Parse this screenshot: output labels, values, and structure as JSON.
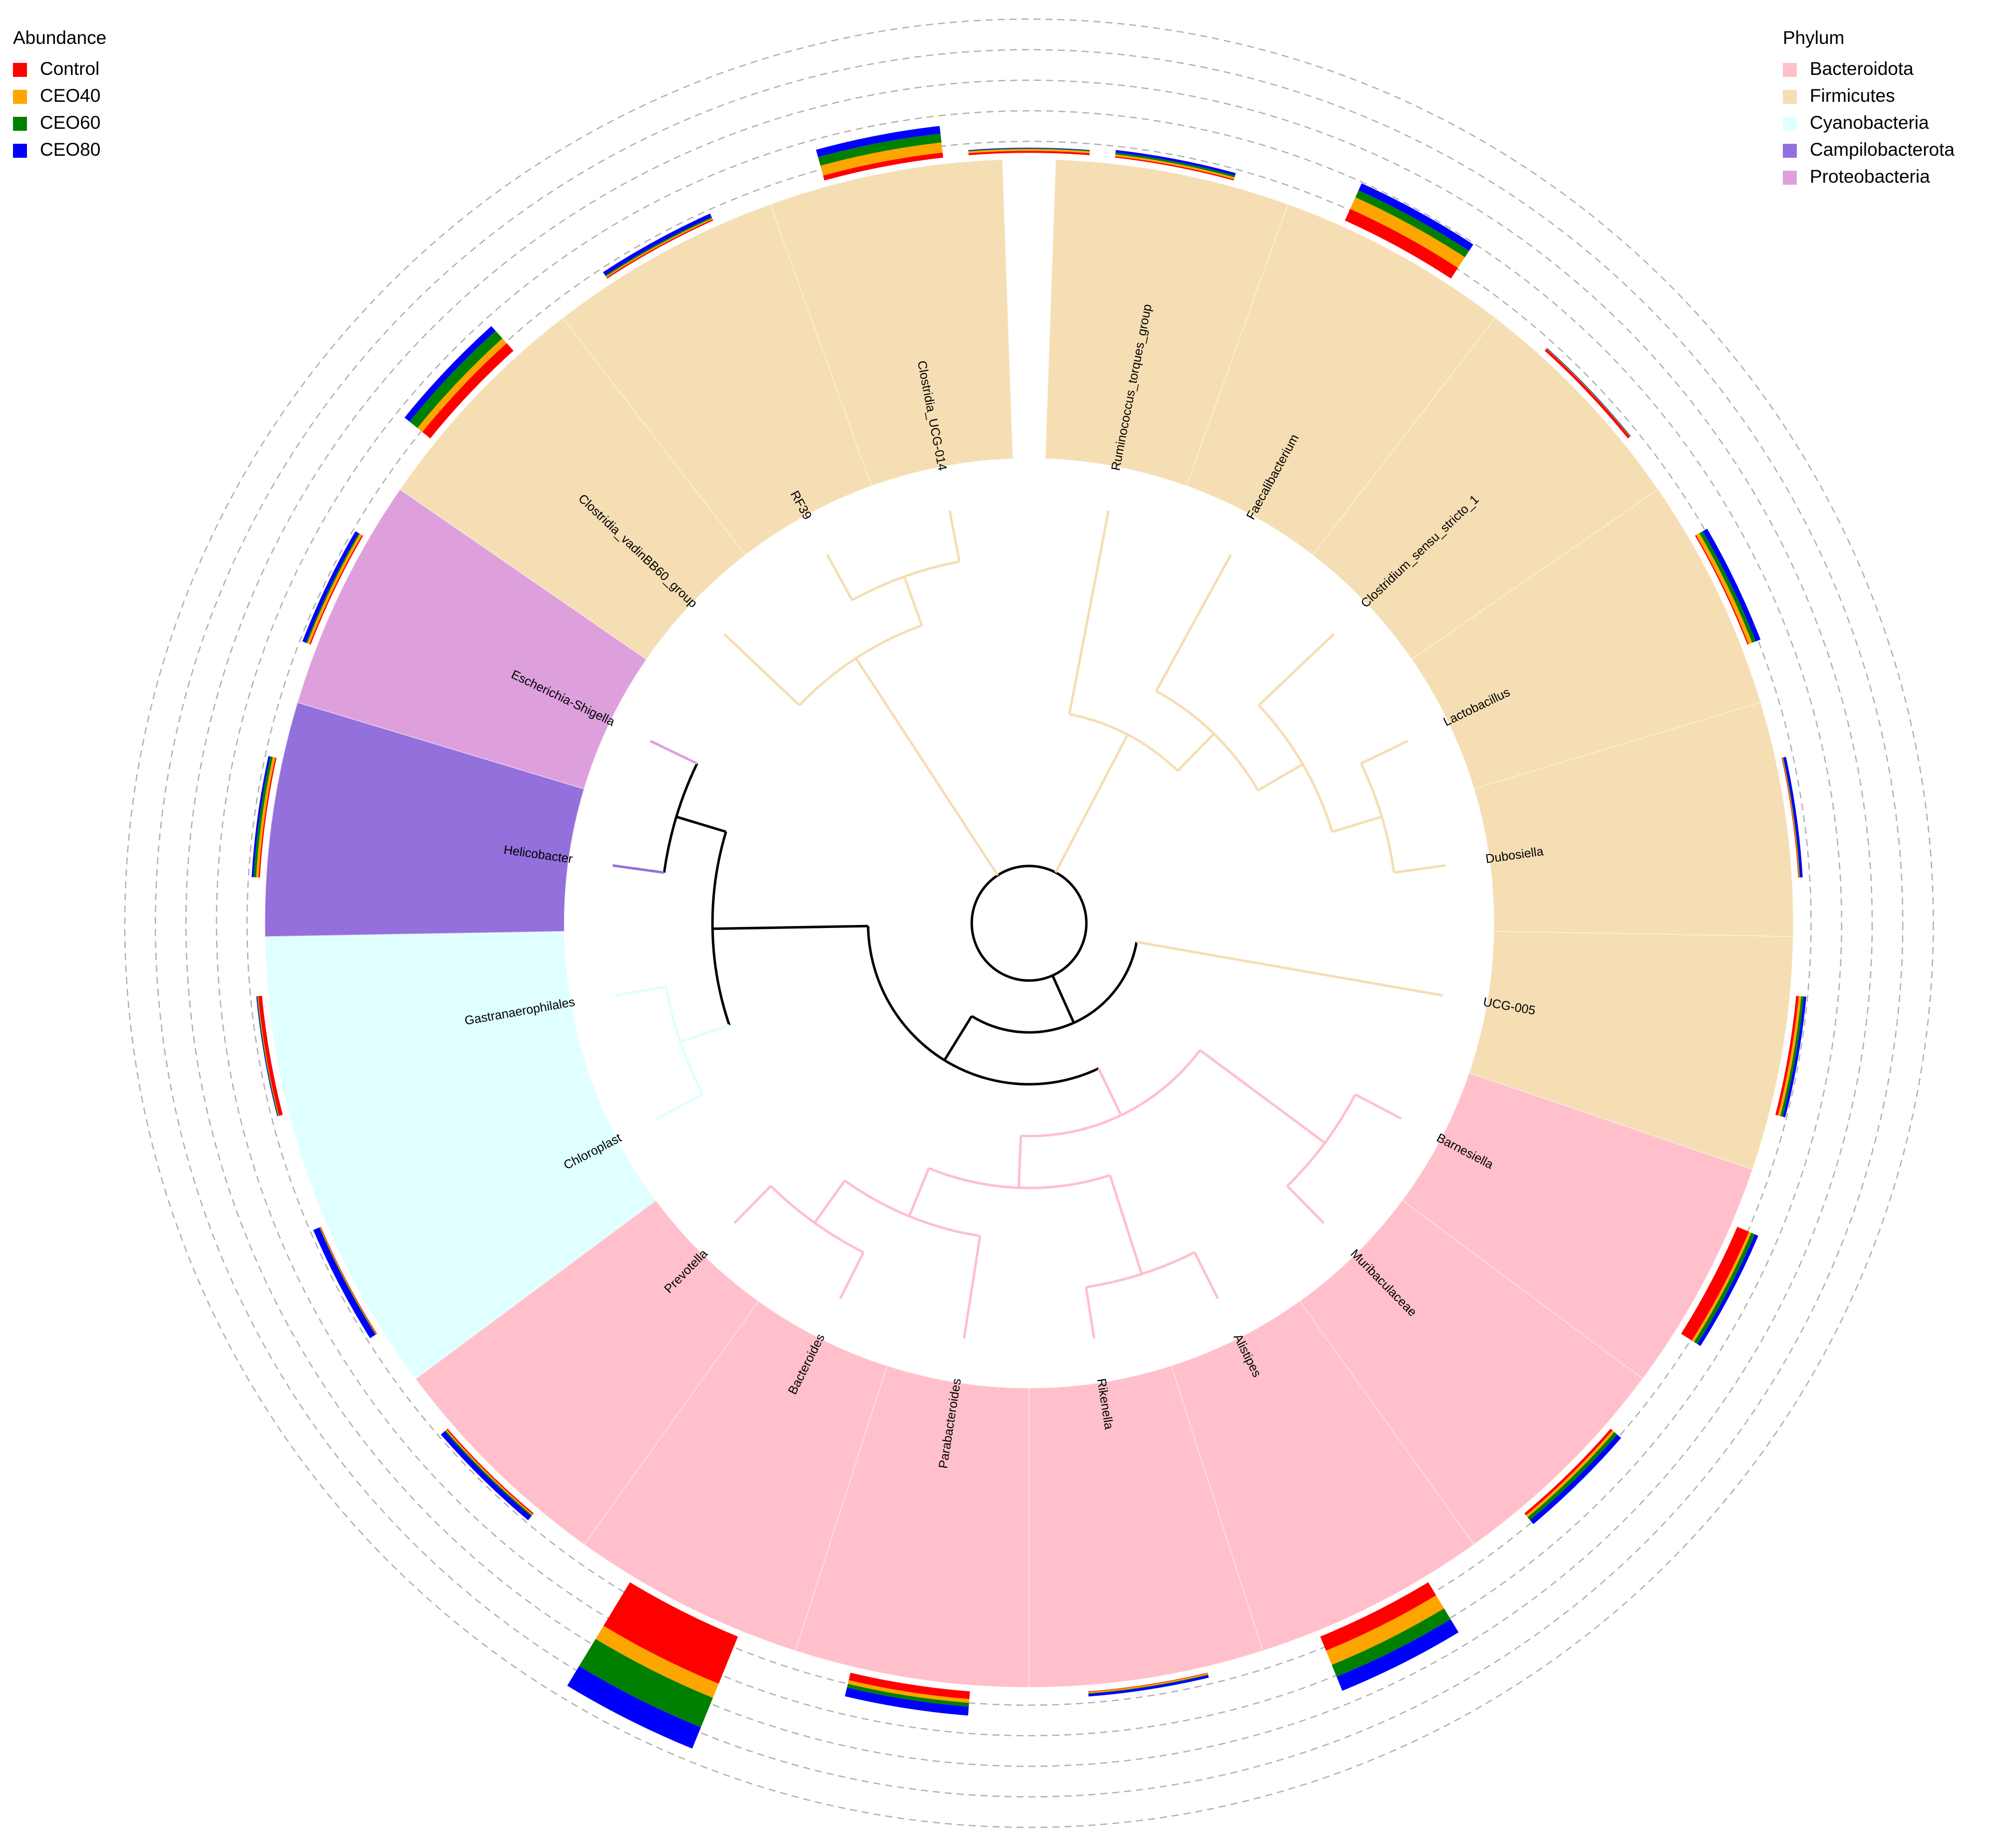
{
  "chart_data": {
    "type": "circular_tree",
    "abundance_legend_title": "Abundance",
    "phylum_legend_title": "Phylum",
    "categories": [
      null,
      "Ruminococcus_torques_group",
      "Faecalibacterium",
      "Clostridium_sensu_stricto_1",
      "Lactobacillus",
      "Dubosiella",
      "UCG-005",
      "Barnesiella",
      "Muribaculaceae",
      "Alistipes",
      "Rikenella",
      "Parabacteroides",
      "Bacteroides",
      "Prevotella",
      "Chloroplast",
      "Gastranaerophilales",
      "Helicobacter",
      "Escherichia-Shigella",
      "Clostridia_vadinBB60_group",
      "RF39",
      "Clostridia_UCG-014"
    ],
    "phylum": [
      null,
      "Firmicutes",
      "Firmicutes",
      "Firmicutes",
      "Firmicutes",
      "Firmicutes",
      "Firmicutes",
      "Bacteroidota",
      "Bacteroidota",
      "Bacteroidota",
      "Bacteroidota",
      "Bacteroidota",
      "Bacteroidota",
      "Bacteroidota",
      "Cyanobacteria",
      "Cyanobacteria",
      "Campilobacterota",
      "Proteobacteria",
      "Firmicutes",
      "Firmicutes",
      "Firmicutes"
    ],
    "phyla": [
      {
        "name": "Bacteroidota",
        "color": "#ffc0cb"
      },
      {
        "name": "Firmicutes",
        "color": "#f5deb3"
      },
      {
        "name": "Cyanobacteria",
        "color": "#e0ffff"
      },
      {
        "name": "Campilobacterota",
        "color": "#9370db"
      },
      {
        "name": "Proteobacteria",
        "color": "#dda0dd"
      }
    ],
    "series": [
      {
        "name": "Control",
        "color": "#ff0000",
        "values": [
          1.5,
          1,
          10,
          2,
          1,
          0.5,
          2,
          10,
          2,
          12,
          0.5,
          6,
          40,
          1,
          0.5,
          3,
          1,
          1,
          8,
          1,
          4
        ]
      },
      {
        "name": "CEO40",
        "color": "#ffa500",
        "values": [
          1.5,
          1.5,
          10,
          0.3,
          3,
          0.5,
          2,
          2,
          2,
          12,
          1,
          3,
          12,
          1,
          0.5,
          0.5,
          2,
          2,
          5,
          1,
          8
        ]
      },
      {
        "name": "CEO60",
        "color": "#008000",
        "values": [
          0.5,
          1.5,
          6,
          0.3,
          3,
          0.5,
          2,
          3,
          3,
          10,
          0.5,
          3,
          25,
          1,
          0.5,
          0.5,
          2,
          1,
          8,
          1,
          7
        ]
      },
      {
        "name": "CEO80",
        "color": "#0000ff",
        "values": [
          0.5,
          2,
          6,
          0.3,
          4,
          2,
          2,
          3,
          4,
          12,
          2,
          7,
          18,
          4,
          5,
          0.5,
          1.5,
          3,
          5,
          3,
          6
        ]
      }
    ]
  }
}
